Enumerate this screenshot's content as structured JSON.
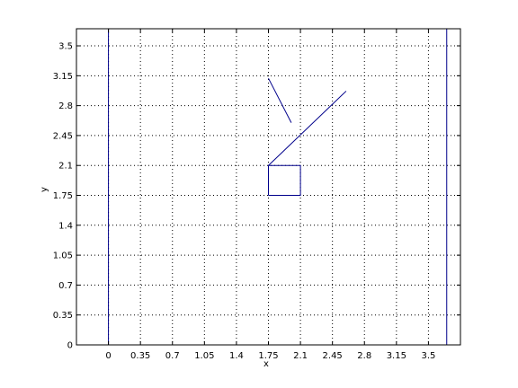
{
  "chart_data": {
    "type": "line",
    "title": "",
    "xlabel": "x",
    "ylabel": "y",
    "xlim": [
      -0.35,
      3.85
    ],
    "ylim": [
      0,
      3.7
    ],
    "grid": true,
    "xticks": [
      0,
      0.35,
      0.7,
      1.05,
      1.4,
      1.75,
      2.1,
      2.45,
      2.8,
      3.15,
      3.5
    ],
    "xtick_labels": [
      "0",
      "0.35",
      "0.7",
      "1.05",
      "1.4",
      "1.75",
      "2.1",
      "2.45",
      "2.8",
      "3.15",
      "3.5"
    ],
    "yticks": [
      0,
      0.35,
      0.7,
      1.05,
      1.4,
      1.75,
      2.1,
      2.45,
      2.8,
      3.15,
      3.5
    ],
    "ytick_labels": [
      "0",
      "0.35",
      "0.7",
      "1.05",
      "1.4",
      "1.75",
      "2.1",
      "2.45",
      "2.8",
      "3.15",
      "3.5"
    ],
    "line_color": "#00008b",
    "series": [
      {
        "x": [
          0,
          0
        ],
        "y": [
          0,
          3.7
        ]
      },
      {
        "x": [
          3.7,
          3.7
        ],
        "y": [
          0,
          3.7
        ]
      },
      {
        "x": [
          1.75,
          2.1,
          2.1,
          1.75,
          1.75
        ],
        "y": [
          1.75,
          1.75,
          2.1,
          2.1,
          1.75
        ]
      },
      {
        "x": [
          1.75,
          2.6
        ],
        "y": [
          2.1,
          2.97
        ]
      },
      {
        "x": [
          1.75,
          2.0
        ],
        "y": [
          3.12,
          2.6
        ]
      }
    ]
  }
}
